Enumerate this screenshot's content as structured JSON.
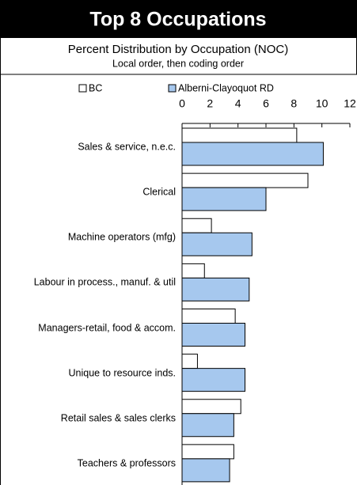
{
  "chart_data": {
    "type": "hbar",
    "title": "Top 8 Occupations",
    "subtitle": "Percent Distribution by Occupation (NOC)",
    "note": "Local order, then coding order",
    "categories": [
      "Sales & service, n.e.c.",
      "Clerical",
      "Machine operators (mfg)",
      "Labour in process., manuf. & util",
      "Managers-retail, food & accom.",
      "Unique to resource inds.",
      "Retail sales & sales clerks",
      "Teachers & professors"
    ],
    "series": [
      {
        "name": "BC",
        "color": "#ffffff",
        "values": [
          8.2,
          9.0,
          2.1,
          1.6,
          3.8,
          1.1,
          4.2,
          3.7
        ]
      },
      {
        "name": "Alberni-Clayoquot RD",
        "color": "#a6c8ee",
        "values": [
          10.1,
          6.0,
          5.0,
          4.8,
          4.5,
          4.5,
          3.7,
          3.4
        ]
      }
    ],
    "xlim": [
      0,
      12
    ],
    "xticks": [
      0,
      2,
      4,
      6,
      8,
      10,
      12
    ]
  }
}
